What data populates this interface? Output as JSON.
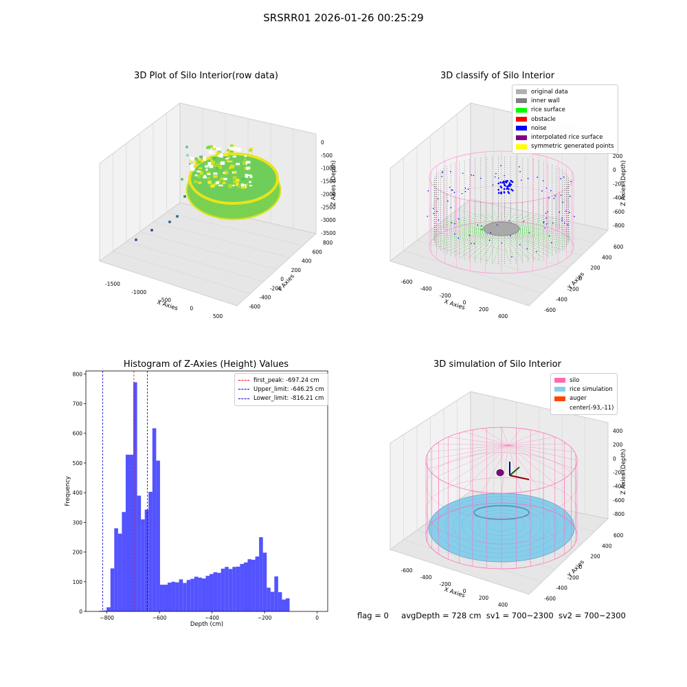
{
  "page": {
    "suptitle": "SRSRR01 2026-01-26 00:25:29"
  },
  "colors": {
    "histogram_bar": "#4a4aff",
    "first_peak": "#ff0000",
    "limits": "#0000cc",
    "silo": "#ff69b4",
    "rice": "#87ceeb",
    "auger": "#ff4500"
  },
  "chart_data": [
    {
      "type": "scatter",
      "title": "3D Plot of Silo Interior(row data)",
      "xlabel": "X Axies",
      "ylabel": "Y Axies",
      "zlabel": "Z Axies (Depth)",
      "x_ticks": [
        "-1500",
        "-1000",
        "-500",
        "0",
        "500"
      ],
      "y_ticks": [
        "-600",
        "-400",
        "-200",
        "0",
        "200",
        "400",
        "600",
        "800"
      ],
      "z_ticks": [
        "0",
        "-500",
        "-1000",
        "-1500",
        "-2000",
        "-2500",
        "-3000",
        "-3500"
      ],
      "xlim": [
        -1700,
        600
      ],
      "ylim": [
        -700,
        850
      ],
      "zlim": [
        -3600,
        100
      ],
      "colormap": "viridis"
    },
    {
      "type": "scatter",
      "title": "3D classify of Silo Interior",
      "xlabel": "X Axies",
      "ylabel": "Y Axies",
      "zlabel": "Z Axies (Depth)",
      "x_ticks": [
        "-600",
        "-400",
        "-200",
        "0",
        "200",
        "400"
      ],
      "y_ticks": [
        "-600",
        "-400",
        "-200",
        "0",
        "200",
        "400",
        "600"
      ],
      "z_ticks": [
        "200",
        "0",
        "-200",
        "-400",
        "-600",
        "-800"
      ],
      "legend_position": "top-right",
      "legend": [
        {
          "label": "original data",
          "color": "#b0b0b0"
        },
        {
          "label": "inner wall",
          "color": "#808080"
        },
        {
          "label": "rice surface",
          "color": "#00ff00"
        },
        {
          "label": "obstacle",
          "color": "#ff0000"
        },
        {
          "label": "noise",
          "color": "#0000ff"
        },
        {
          "label": "interpolated rice surface",
          "color": "#800080"
        },
        {
          "label": "symmetric generated points",
          "color": "#ffff00"
        }
      ]
    },
    {
      "type": "bar",
      "title": "Histogram of Z-Axies (Height) Values",
      "xlabel": "Depth (cm)",
      "ylabel": "Frequency",
      "xlim": [
        -880,
        40
      ],
      "ylim": [
        0,
        810
      ],
      "x_ticks": [
        -800,
        -600,
        -400,
        -200,
        0
      ],
      "y_ticks": [
        0,
        100,
        200,
        300,
        400,
        500,
        600,
        700,
        800
      ],
      "bin_start": -830,
      "bin_width": 14.5,
      "values": [
        2,
        3,
        14,
        145,
        280,
        262,
        335,
        528,
        528,
        772,
        390,
        310,
        343,
        403,
        617,
        508,
        90,
        90,
        97,
        100,
        98,
        108,
        96,
        106,
        110,
        117,
        114,
        111,
        120,
        126,
        132,
        130,
        144,
        150,
        143,
        150,
        151,
        160,
        165,
        176,
        174,
        185,
        250,
        198,
        80,
        66,
        118,
        65,
        40,
        44
      ],
      "legend_position": "top-right",
      "vlines": [
        {
          "label": "first_peak: -697.24 cm",
          "x": -697.24,
          "color": "#ff0000"
        },
        {
          "label": "Upper_limit: -646.25 cm",
          "x": -646.25,
          "color": "#0000cc"
        },
        {
          "label": "Lower_limit: -816.21 cm",
          "x": -816.21,
          "color": "#0000cc"
        }
      ]
    },
    {
      "type": "scatter",
      "title": "3D simulation of Silo Interior",
      "xlabel": "X Axies",
      "ylabel": "Y Axies",
      "zlabel": "Z Axies (Depth)",
      "x_ticks": [
        "-600",
        "-400",
        "-200",
        "0",
        "200",
        "400"
      ],
      "y_ticks": [
        "-600",
        "-400",
        "-200",
        "0",
        "200",
        "400",
        "600"
      ],
      "z_ticks": [
        "400",
        "200",
        "0",
        "-200",
        "-400",
        "-600",
        "-800"
      ],
      "legend_position": "top-right",
      "legend": [
        {
          "label": "silo",
          "color": "#ff69b4"
        },
        {
          "label": "rice simulation",
          "color": "#87ceeb"
        },
        {
          "label": "auger",
          "color": "#ff4500"
        },
        {
          "label": "center(-93,-11)",
          "color": ""
        }
      ]
    }
  ],
  "status": {
    "flag": "flag = 0",
    "avg_depth": "avgDepth = 728 cm",
    "sv1": "sv1 = 700~2300",
    "sv2": "sv2 = 700~2300"
  }
}
